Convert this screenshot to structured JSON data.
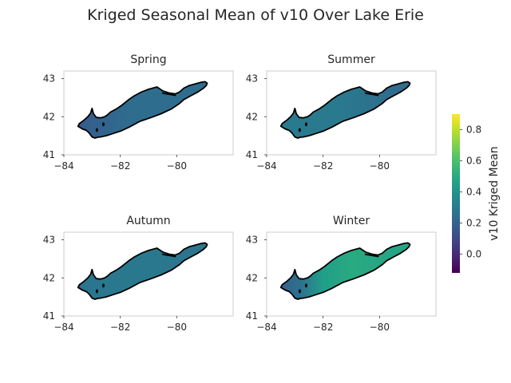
{
  "title": "Kriged Seasonal Mean of v10 Over Lake Erie",
  "colorbar": {
    "label": "v10 Kriged Mean",
    "range": [
      -0.12,
      0.9
    ],
    "ticks": [
      0.0,
      0.2,
      0.4,
      0.6,
      0.8
    ],
    "tick_labels": [
      "0.0",
      "0.2",
      "0.4",
      "0.6",
      "0.8"
    ],
    "colormap": "viridis"
  },
  "chart_data": [
    {
      "type": "heatmap",
      "title": "Spring",
      "xlim": [
        -84,
        -78
      ],
      "ylim": [
        41,
        43.2
      ],
      "xticks": [
        -84,
        -82,
        -80
      ],
      "xtick_labels": [
        "−84",
        "−82",
        "−80"
      ],
      "yticks": [
        41,
        42,
        43
      ],
      "ytick_labels": [
        "41",
        "42",
        "43"
      ],
      "gradient": {
        "lon": [
          -83.4,
          -82.5,
          -81.5,
          -79.5
        ],
        "value": [
          0.17,
          0.21,
          0.24,
          0.24
        ]
      }
    },
    {
      "type": "heatmap",
      "title": "Summer",
      "xlim": [
        -84,
        -78
      ],
      "ylim": [
        41,
        43.2
      ],
      "xticks": [
        -84,
        -82,
        -80
      ],
      "xtick_labels": [
        "−84",
        "−82",
        "−80"
      ],
      "yticks": [
        41,
        42,
        43
      ],
      "ytick_labels": [
        "41",
        "42",
        "43"
      ],
      "gradient": {
        "lon": [
          -83.4,
          -81.5,
          -80.5,
          -79.5
        ],
        "value": [
          0.3,
          0.3,
          0.27,
          0.24
        ]
      }
    },
    {
      "type": "heatmap",
      "title": "Autumn",
      "xlim": [
        -84,
        -78
      ],
      "ylim": [
        41,
        43.2
      ],
      "xticks": [
        -84,
        -82,
        -80
      ],
      "xtick_labels": [
        "−84",
        "−82",
        "−80"
      ],
      "yticks": [
        41,
        42,
        43
      ],
      "ytick_labels": [
        "41",
        "42",
        "43"
      ],
      "gradient": {
        "lon": [
          -83.4,
          -82.5,
          -81.0,
          -79.5
        ],
        "value": [
          0.27,
          0.29,
          0.29,
          0.28
        ]
      }
    },
    {
      "type": "heatmap",
      "title": "Winter",
      "xlim": [
        -84,
        -78
      ],
      "ylim": [
        41,
        43.2
      ],
      "xticks": [
        -84,
        -82,
        -80
      ],
      "xtick_labels": [
        "−84",
        "−82",
        "−80"
      ],
      "yticks": [
        41,
        42,
        43
      ],
      "ytick_labels": [
        "41",
        "42",
        "43"
      ],
      "gradient": {
        "lon": [
          -83.4,
          -82.8,
          -82.0,
          -81.0,
          -79.5
        ],
        "value": [
          0.2,
          0.26,
          0.45,
          0.5,
          0.48
        ]
      }
    }
  ],
  "lake_outline": {
    "lon": [
      -78.92,
      -78.95,
      -79.05,
      -79.25,
      -79.5,
      -79.75,
      -79.9,
      -80.2,
      -80.55,
      -80.9,
      -81.3,
      -81.7,
      -82.0,
      -82.3,
      -82.5,
      -82.7,
      -82.8,
      -82.9,
      -83.0,
      -83.1,
      -83.2,
      -83.35,
      -83.5,
      -83.45,
      -83.3,
      -83.15,
      -83.05,
      -83.0,
      -82.95,
      -82.85,
      -82.7,
      -82.55,
      -82.45,
      -82.35,
      -82.15,
      -81.95,
      -81.7,
      -81.5,
      -81.25,
      -81.0,
      -80.7,
      -80.5,
      -80.25,
      -80.05,
      -79.9,
      -79.75,
      -79.55,
      -79.35,
      -79.15,
      -79.0,
      -78.92
    ],
    "lat": [
      42.88,
      42.82,
      42.75,
      42.65,
      42.55,
      42.45,
      42.35,
      42.2,
      42.08,
      41.98,
      41.88,
      41.72,
      41.62,
      41.55,
      41.5,
      41.47,
      41.46,
      41.44,
      41.47,
      41.57,
      41.64,
      41.68,
      41.75,
      41.82,
      41.9,
      42.0,
      42.1,
      42.22,
      42.08,
      41.98,
      41.97,
      42.0,
      42.05,
      42.12,
      42.2,
      42.3,
      42.45,
      42.55,
      42.65,
      42.72,
      42.78,
      42.68,
      42.62,
      42.6,
      42.65,
      42.75,
      42.82,
      42.86,
      42.9,
      42.92,
      42.88
    ]
  },
  "long_point": {
    "lon": [
      -80.5,
      -80.05
    ],
    "lat": [
      42.62,
      42.56
    ]
  },
  "islands": [
    {
      "lon": -82.6,
      "lat": 41.8
    },
    {
      "lon": -82.83,
      "lat": 41.65
    }
  ]
}
